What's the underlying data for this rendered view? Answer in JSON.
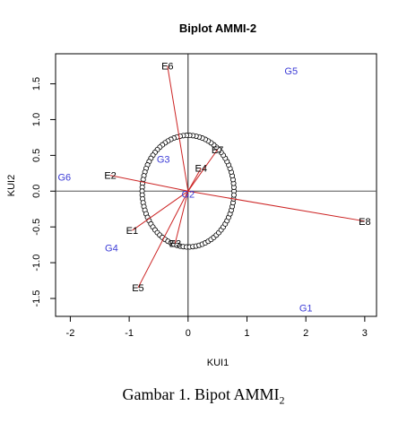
{
  "caption": {
    "text": "Gambar 1. Bipot AMMI",
    "subscript": "2"
  },
  "chart_data": {
    "type": "scatter",
    "title": "Biplot AMMI-2",
    "xlabel": "KUI1",
    "ylabel": "KUI2",
    "xlim": [
      -2.25,
      3.2
    ],
    "ylim": [
      -1.75,
      1.92
    ],
    "xticks": [
      "-2",
      "-1",
      "0",
      "1",
      "2",
      "3"
    ],
    "yticks": [
      "-1.5",
      "-1.0",
      "-0.5",
      "0.0",
      "0.5",
      "1.0",
      "1.5"
    ],
    "xtick_values": [
      -2,
      -1,
      0,
      1,
      2,
      3
    ],
    "ytick_values": [
      -1.5,
      -1.0,
      -0.5,
      0.0,
      0.5,
      1.0,
      1.5
    ],
    "circle_radius": 0.78,
    "environments": [
      {
        "label": "E1",
        "x": -0.95,
        "y": -0.55
      },
      {
        "label": "E2",
        "x": -1.32,
        "y": 0.22
      },
      {
        "label": "E3",
        "x": -0.22,
        "y": -0.73
      },
      {
        "label": "E4",
        "x": 0.22,
        "y": 0.32
      },
      {
        "label": "E5",
        "x": -0.85,
        "y": -1.35
      },
      {
        "label": "E6",
        "x": -0.35,
        "y": 1.75
      },
      {
        "label": "E7",
        "x": 0.5,
        "y": 0.58
      },
      {
        "label": "E8",
        "x": 3.0,
        "y": -0.42
      }
    ],
    "genotypes": [
      {
        "label": "G1",
        "x": 2.0,
        "y": -1.63
      },
      {
        "label": "G2",
        "x": 0.0,
        "y": -0.04
      },
      {
        "label": "G3",
        "x": -0.42,
        "y": 0.45
      },
      {
        "label": "G4",
        "x": -1.3,
        "y": -0.79
      },
      {
        "label": "G5",
        "x": 1.75,
        "y": 1.68
      },
      {
        "label": "G6",
        "x": -2.1,
        "y": 0.2
      }
    ],
    "colors": {
      "vector": "#cc2222",
      "genotype": "#3b3bd6",
      "circle": "#000000",
      "reference_line": "#555555"
    }
  }
}
